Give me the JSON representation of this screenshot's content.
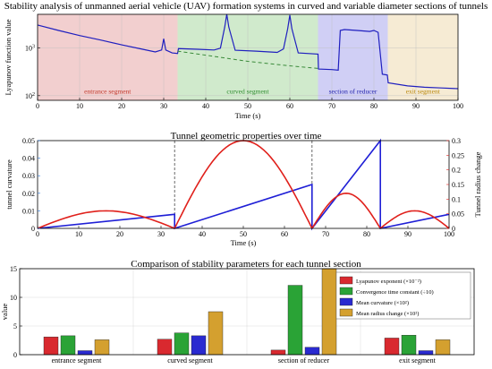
{
  "chart_data": [
    {
      "type": "line",
      "title": "Stability analysis of unmanned aerial vehicle (UAV) formation systems in curved and variable diameter sections of tunnels",
      "xlabel": "Time (s)",
      "ylabel": "Lyapunov function value",
      "xlim": [
        0,
        100
      ],
      "ylim": [
        80,
        5000
      ],
      "yscale": "log",
      "xticks": [
        0,
        10,
        20,
        30,
        40,
        50,
        60,
        70,
        80,
        90,
        100
      ],
      "yticks": [
        {
          "value": 100,
          "label": "10²"
        },
        {
          "value": 1000,
          "label": "10³"
        }
      ],
      "grid": true,
      "regions": [
        {
          "label": "entrance segment",
          "x": [
            0,
            33.3
          ],
          "color": "#e8a7a7",
          "text_color": "#c0392b"
        },
        {
          "label": "curved segment",
          "x": [
            33.3,
            66.7
          ],
          "color": "#a9d8a2",
          "text_color": "#2e8b2e"
        },
        {
          "label": "section of reducer",
          "x": [
            66.7,
            83.3
          ],
          "color": "#a9a8ec",
          "text_color": "#2222aa"
        },
        {
          "label": "exit segment",
          "x": [
            83.3,
            100
          ],
          "color": "#eedbb0",
          "text_color": "#b8860b"
        }
      ],
      "series": [
        {
          "color": "#1f1fbf",
          "style": "solid",
          "x": [
            0,
            5,
            10,
            15,
            20,
            25,
            28,
            29.5,
            30,
            30.5,
            32,
            33.3,
            33.5,
            38,
            42,
            43.5,
            44.5,
            45,
            45.5,
            47,
            52,
            57,
            58.5,
            59.5,
            60,
            60.5,
            62,
            66.7,
            66.8,
            70,
            71.5,
            72,
            73,
            76,
            79,
            80,
            81,
            82,
            83.2,
            83.4,
            88,
            92,
            96,
            100
          ],
          "y": [
            3000,
            2300,
            1800,
            1450,
            1150,
            930,
            820,
            900,
            1550,
            900,
            780,
            760,
            960,
            930,
            900,
            980,
            2700,
            5000,
            2700,
            890,
            850,
            800,
            950,
            2500,
            4800,
            2500,
            780,
            740,
            360,
            350,
            340,
            2300,
            2400,
            2300,
            2200,
            2300,
            2100,
            280,
            270,
            185,
            160,
            150,
            145,
            140
          ]
        },
        {
          "color": "#3a8a3a",
          "style": "dashed",
          "x": [
            33.3,
            40,
            50,
            60,
            66.7
          ],
          "y": [
            850,
            700,
            520,
            420,
            370
          ]
        }
      ]
    },
    {
      "type": "line",
      "title": "Tunnel geometric properties over time",
      "xlabel": "Time (s)",
      "ylabel": "tunnel curvature",
      "ylabel_right": "Tunnel radius change",
      "xlim": [
        0,
        100
      ],
      "ylim": [
        0,
        0.05
      ],
      "ylim_right": [
        0,
        0.3
      ],
      "xticks": [
        0,
        10,
        20,
        30,
        40,
        50,
        60,
        70,
        80,
        90,
        100
      ],
      "yticks": [
        0,
        0.01,
        0.02,
        0.03,
        0.04,
        0.05
      ],
      "yticks_right": [
        0,
        0.05,
        0.1,
        0.15,
        0.2,
        0.25,
        0.3
      ],
      "vlines": [
        33.3,
        66.7,
        83.3
      ],
      "series": [
        {
          "axis": "left",
          "color": "#1f1fd6",
          "x": [
            0,
            33.3,
            33.3,
            66.7,
            66.7,
            83.3,
            83.3,
            100
          ],
          "y": [
            0,
            0.008,
            0,
            0.025,
            0,
            0.05,
            0,
            0.008
          ]
        },
        {
          "axis": "right",
          "color": "#e0201b",
          "segments": [
            {
              "x0": 0,
              "x1": 33.3,
              "peak": 0.06
            },
            {
              "x0": 33.3,
              "x1": 66.7,
              "peak": 0.3
            },
            {
              "x0": 66.7,
              "x1": 83.3,
              "peak": 0.12
            },
            {
              "x0": 83.3,
              "x1": 100,
              "peak": 0.06
            }
          ]
        }
      ]
    },
    {
      "type": "bar",
      "title": "Comparison of stability parameters for each tunnel section",
      "xlabel": "",
      "ylabel": "value",
      "ylim": [
        0,
        15
      ],
      "yticks": [
        0,
        5,
        10,
        15
      ],
      "categories": [
        "entrance segment",
        "curved segment",
        "section of reducer",
        "exit segment"
      ],
      "legend_position": "top-right",
      "series": [
        {
          "name": "Lyapunov exponent (×10⁻²)",
          "color": "#d9292f",
          "values": [
            3.1,
            2.7,
            0.8,
            2.9
          ]
        },
        {
          "name": "Convergence time constant (÷10)",
          "color": "#2aa336",
          "values": [
            3.3,
            3.8,
            12.1,
            3.4
          ]
        },
        {
          "name": "Mean curvature (×10²)",
          "color": "#2a2ad0",
          "values": [
            0.7,
            3.3,
            1.3,
            0.7
          ]
        },
        {
          "name": "Mean radius change (×10²)",
          "color": "#d4a02f",
          "values": [
            2.6,
            7.5,
            15,
            2.6
          ]
        }
      ]
    }
  ]
}
